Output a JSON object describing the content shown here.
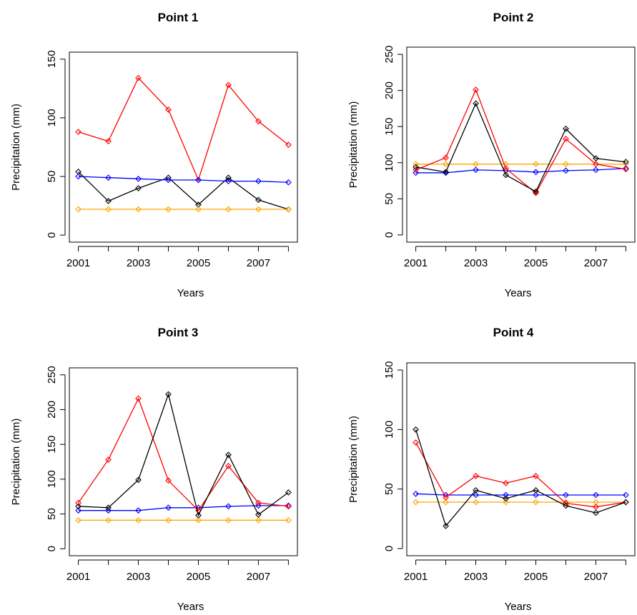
{
  "chart_data": [
    {
      "type": "line",
      "title": "Point 1",
      "xlabel": "Years",
      "ylabel": "Precipitation (mm)",
      "x": [
        2001,
        2002,
        2003,
        2004,
        2005,
        2006,
        2007,
        2008
      ],
      "xticks": [
        2001,
        2003,
        2005,
        2007
      ],
      "yticks": [
        0,
        50,
        100,
        150
      ],
      "ylim": [
        0,
        150
      ],
      "series": [
        {
          "color": "#ff0000",
          "values": [
            88,
            80,
            134,
            107,
            47,
            128,
            97,
            77
          ]
        },
        {
          "color": "#000000",
          "values": [
            54,
            29,
            40,
            49,
            26,
            49,
            30,
            22
          ]
        },
        {
          "color": "#0000ff",
          "values": [
            50,
            49,
            48,
            47,
            47,
            46,
            46,
            45
          ]
        },
        {
          "color": "#ffa500",
          "values": [
            22,
            22,
            22,
            22,
            22,
            22,
            22,
            22
          ]
        }
      ]
    },
    {
      "type": "line",
      "title": "Point 2",
      "xlabel": "Years",
      "ylabel": "Precipitation (mm)",
      "x": [
        2001,
        2002,
        2003,
        2004,
        2005,
        2006,
        2007,
        2008
      ],
      "xticks": [
        2001,
        2003,
        2005,
        2007
      ],
      "yticks": [
        0,
        50,
        100,
        150,
        200,
        250
      ],
      "ylim": [
        0,
        250
      ],
      "series": [
        {
          "color": "#ffa500",
          "values": [
            98,
            98,
            98,
            98,
            98,
            98,
            98,
            98
          ]
        },
        {
          "color": "#0000ff",
          "values": [
            86,
            86,
            90,
            89,
            87,
            89,
            90,
            92
          ]
        },
        {
          "color": "#ff0000",
          "values": [
            90,
            107,
            201,
            92,
            58,
            133,
            98,
            91
          ]
        },
        {
          "color": "#000000",
          "values": [
            94,
            87,
            182,
            83,
            60,
            147,
            106,
            101
          ]
        }
      ]
    },
    {
      "type": "line",
      "title": "Point 3",
      "xlabel": "Years",
      "ylabel": "Precipitation (mm)",
      "x": [
        2001,
        2002,
        2003,
        2004,
        2005,
        2006,
        2007,
        2008
      ],
      "xticks": [
        2001,
        2003,
        2005,
        2007
      ],
      "yticks": [
        0,
        50,
        100,
        150,
        200,
        250
      ],
      "ylim": [
        0,
        250
      ],
      "series": [
        {
          "color": "#ffa500",
          "values": [
            41,
            41,
            41,
            41,
            41,
            41,
            41,
            41
          ]
        },
        {
          "color": "#0000ff",
          "values": [
            55,
            55,
            55,
            59,
            59,
            61,
            62,
            62
          ]
        },
        {
          "color": "#ff0000",
          "values": [
            66,
            128,
            216,
            98,
            55,
            119,
            66,
            61
          ]
        },
        {
          "color": "#000000",
          "values": [
            61,
            59,
            99,
            222,
            48,
            135,
            49,
            81
          ]
        }
      ]
    },
    {
      "type": "line",
      "title": "Point 4",
      "xlabel": "Years",
      "ylabel": "Precipitation (mm)",
      "x": [
        2001,
        2002,
        2003,
        2004,
        2005,
        2006,
        2007,
        2008
      ],
      "xticks": [
        2001,
        2003,
        2005,
        2007
      ],
      "yticks": [
        0,
        50,
        100,
        150
      ],
      "ylim": [
        0,
        150
      ],
      "series": [
        {
          "color": "#ffa500",
          "values": [
            39,
            39,
            39,
            39,
            39,
            39,
            39,
            39
          ]
        },
        {
          "color": "#0000ff",
          "values": [
            46,
            45,
            45,
            45,
            45,
            45,
            45,
            45
          ]
        },
        {
          "color": "#ff0000",
          "values": [
            89,
            43,
            61,
            55,
            61,
            38,
            35,
            39
          ]
        },
        {
          "color": "#000000",
          "values": [
            100,
            19,
            49,
            42,
            49,
            36,
            30,
            39
          ]
        }
      ]
    }
  ]
}
